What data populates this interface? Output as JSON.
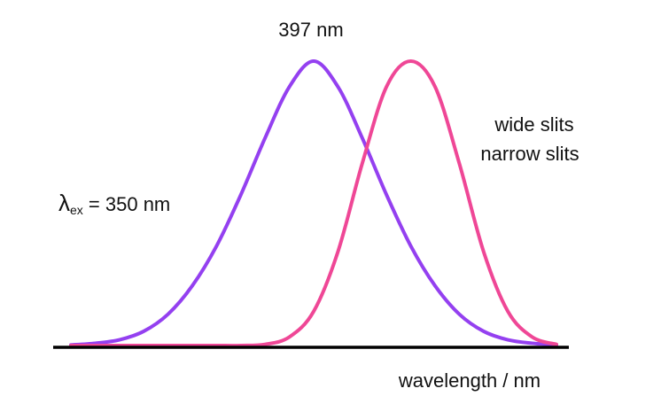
{
  "chart_data": {
    "type": "line",
    "title": "",
    "xlabel": "wavelength / nm",
    "ylabel": "",
    "grid": false,
    "legend_placement": "right",
    "peak_label": "397 nm",
    "annotation": {
      "symbol": "λ",
      "subscript": "ex",
      "text": " = 350 nm"
    },
    "x": [
      -5.0,
      -4.5,
      -4.0,
      -3.5,
      -3.0,
      -2.5,
      -2.0,
      -1.5,
      -1.0,
      -0.5,
      0.0,
      0.5,
      1.0,
      1.5,
      2.0,
      2.5,
      3.0,
      3.5,
      4.0,
      4.5,
      5.0
    ],
    "series": [
      {
        "name": "wide slits",
        "color": "#9440f0",
        "values": [
          0.002,
          0.008,
          0.02,
          0.05,
          0.11,
          0.21,
          0.35,
          0.53,
          0.73,
          0.91,
          1.0,
          0.91,
          0.73,
          0.53,
          0.35,
          0.21,
          0.11,
          0.05,
          0.02,
          0.008,
          0.002
        ]
      },
      {
        "name": "narrow slits",
        "color": "#ef4796",
        "values": [
          0.0,
          0.0,
          0.0,
          0.0,
          0.0,
          0.0,
          0.0,
          0.0,
          0.004,
          0.03,
          0.12,
          0.33,
          0.64,
          0.91,
          1.0,
          0.91,
          0.64,
          0.33,
          0.12,
          0.03,
          0.004
        ]
      }
    ]
  }
}
